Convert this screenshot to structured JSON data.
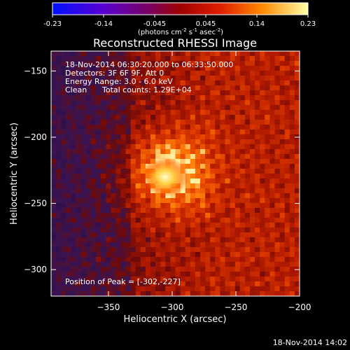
{
  "chart_data": {
    "type": "heatmap",
    "title": "Reconstructed RHESSI Image",
    "xlabel": "Heliocentric X (arcsec)",
    "ylabel": "Heliocentric Y (arcsec)",
    "x_range": [
      -395,
      -200
    ],
    "y_range": [
      -320,
      -135
    ],
    "x_ticks": [
      -350,
      -300,
      -250,
      -200
    ],
    "y_ticks": [
      -150,
      -200,
      -250,
      -300
    ],
    "colorbar": {
      "range": [
        -0.23,
        0.23
      ],
      "ticks": [
        "-0.23",
        "-0.14",
        "-0.045",
        "0.045",
        "0.14",
        "0.23"
      ],
      "unit_text": "(photons cm",
      "unit_sup1": "-2",
      "unit_mid": " s",
      "unit_sup2": "-1",
      "unit_end": " asec",
      "unit_sup3": "-2",
      "unit_close": ")"
    },
    "annotations": {
      "time_range": "18-Nov-2014 06:30:20.000 to 06:33:50.000",
      "detectors": "Detectors: 3F 6F 9F, Att 0",
      "energy": "Energy Range: 3.0 - 6.0 keV",
      "clean_label": "Clean",
      "total_counts": "Total counts: 1.29E+04",
      "peak_position": "Position of Peak = [-302,-227]"
    },
    "peak": {
      "x": -302,
      "y": -227,
      "value": 0.23
    },
    "grid": false
  },
  "footer_timestamp": "18-Nov-2014 14:02"
}
